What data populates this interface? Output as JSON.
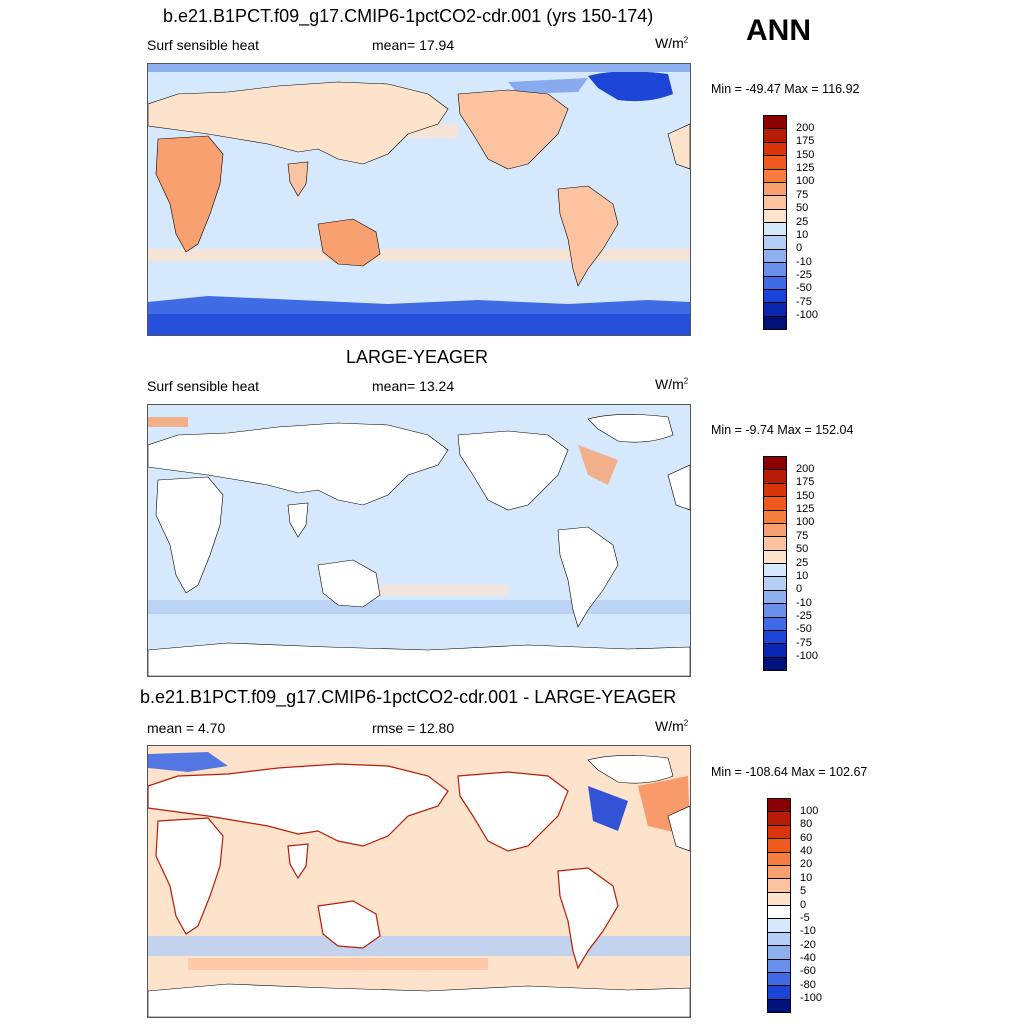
{
  "season": "ANN",
  "panels": [
    {
      "title": "b.e21.B1PCT.f09_g17.CMIP6-1pctCO2-cdr.001 (yrs 150-174)",
      "left_label": "Surf sensible heat",
      "mid_label": "mean=  17.94",
      "units": "W/m",
      "units_sup": "2",
      "minmax": "Min = -49.47 Max = 116.92",
      "colorbar": {
        "labels": [
          "200",
          "175",
          "150",
          "125",
          "100",
          "75",
          "50",
          "25",
          "10",
          "0",
          "-10",
          "-25",
          "-50",
          "-75",
          "-100"
        ],
        "colors": [
          "#8b0000",
          "#b81c06",
          "#d8360a",
          "#f05a1e",
          "#f77c40",
          "#f9a070",
          "#fcc3a0",
          "#fde2cc",
          "#d6e8fb",
          "#b4cef5",
          "#8fb0ef",
          "#6990ea",
          "#3f6be4",
          "#1c44d6",
          "#0a26b0",
          "#00127a"
        ]
      }
    },
    {
      "title": "LARGE-YEAGER",
      "left_label": "Surf sensible heat",
      "mid_label": "mean=  13.24",
      "units": "W/m",
      "units_sup": "2",
      "minmax": "Min =  -9.74 Max = 152.04",
      "colorbar": {
        "labels": [
          "200",
          "175",
          "150",
          "125",
          "100",
          "75",
          "50",
          "25",
          "10",
          "0",
          "-10",
          "-25",
          "-50",
          "-75",
          "-100"
        ],
        "colors": [
          "#8b0000",
          "#b81c06",
          "#d8360a",
          "#f05a1e",
          "#f77c40",
          "#f9a070",
          "#fcc3a0",
          "#fde2cc",
          "#d6e8fb",
          "#b4cef5",
          "#8fb0ef",
          "#6990ea",
          "#3f6be4",
          "#1c44d6",
          "#0a26b0",
          "#00127a"
        ]
      }
    },
    {
      "title": "b.e21.B1PCT.f09_g17.CMIP6-1pctCO2-cdr.001 - LARGE-YEAGER",
      "left_label": "mean =   4.70",
      "mid_label": "rmse =  12.80",
      "units": "W/m",
      "units_sup": "2",
      "minmax": "Min = -108.64 Max = 102.67",
      "colorbar": {
        "labels": [
          "100",
          "80",
          "60",
          "40",
          "20",
          "10",
          "5",
          "0",
          "-5",
          "-10",
          "-20",
          "-40",
          "-60",
          "-80",
          "-100"
        ],
        "colors": [
          "#8b0000",
          "#b81c06",
          "#d8360a",
          "#f05a1e",
          "#f77c40",
          "#f9a070",
          "#fcc3a0",
          "#fde2cc",
          "#ffffff",
          "#d6e8fb",
          "#b4cef5",
          "#8fb0ef",
          "#6990ea",
          "#3f6be4",
          "#1c44d6",
          "#00127a"
        ]
      }
    }
  ]
}
